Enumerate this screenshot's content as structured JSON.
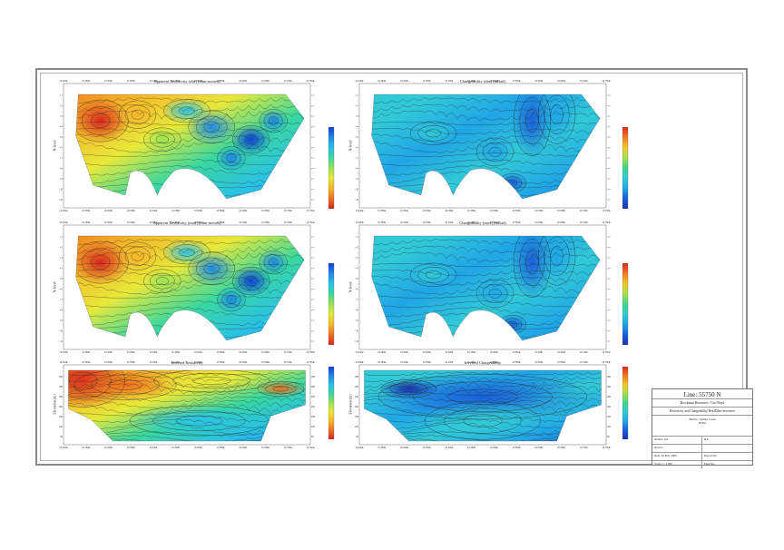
{
  "panels": [
    {
      "title": "Apparent Resistivity (obs) (ohm-metres)",
      "ylabel": "N-level",
      "kind": "resistivity",
      "shape": "pseudo"
    },
    {
      "title": "Chargeability (obs) (mRad)",
      "ylabel": "N-level",
      "kind": "chargeability",
      "shape": "pseudo"
    },
    {
      "title": "Apparent Resistivity (mod) (ohm-metres)",
      "ylabel": "N-level",
      "kind": "resistivity",
      "shape": "pseudo"
    },
    {
      "title": "Chargeability (mod) (mRad)",
      "ylabel": "N-level",
      "kind": "chargeability",
      "shape": "pseudo"
    },
    {
      "title": "Inverted Resistivity",
      "ylabel": "Elevation (m)",
      "kind": "resistivity",
      "shape": "section"
    },
    {
      "title": "Inverted Chargeability",
      "ylabel": "Elevation (m)",
      "kind": "chargeability",
      "shape": "section"
    }
  ],
  "xticks": [
    "10 200E",
    "10 250E",
    "10 300E",
    "10 350E",
    "10 400E",
    "10 450E",
    "10 500E",
    "10 550E",
    "10 600E",
    "10 650E",
    "10 700E",
    "10 750E"
  ],
  "nlevels": [
    "n = 1",
    "n = 2",
    "n = 3",
    "n = 4",
    "n = 5",
    "n = 6",
    "n = 7",
    "n = 8",
    "n = 9",
    "n = 10",
    "n = 11"
  ],
  "elevations": [
    "350",
    "300",
    "250",
    "200",
    "150",
    "100",
    "50"
  ],
  "colors": {
    "resistivity": [
      "#0d3fd8",
      "#1e88e6",
      "#29c1e6",
      "#3ad7a0",
      "#9be255",
      "#e7e93a",
      "#f5b72a",
      "#ee6e1f",
      "#d7261c"
    ],
    "chargeability": [
      "#e0271c",
      "#f07a22",
      "#f2c82a",
      "#a6e04c",
      "#3ed78a",
      "#32c9d7",
      "#20a5e6",
      "#1a5fd8",
      "#1a2fb0"
    ]
  },
  "title_block": {
    "line": "Line: 55750 N",
    "client": "Brockman Resources / Carl Boyd",
    "subtitle": "Resistivity and Chargeability Res2DInv Inversion",
    "project1": "Burrito / Quirky Creek",
    "project2": "IP/Res",
    "author_label": "Author: xxx",
    "author_value": "R.E.",
    "drawn_label": "Drawn:",
    "drawn_value": "",
    "date_label": "Date: 26 May 2009",
    "report_label": "Report No:",
    "scale_label": "Scale: 1 : 5 000",
    "plate_label": "Plate No:"
  }
}
